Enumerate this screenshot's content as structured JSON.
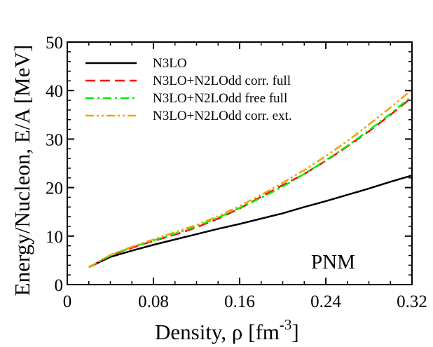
{
  "chart_data": {
    "type": "line",
    "xlabel": "Density, ρ [fm",
    "xlabel_superscript": "-3",
    "xlabel_suffix": "]",
    "ylabel": "Energy/Nucleon, E/A [MeV]",
    "xlim": [
      0,
      0.32
    ],
    "ylim": [
      0,
      50
    ],
    "x_ticks": [
      0,
      0.08,
      0.16,
      0.24,
      0.32
    ],
    "x_tick_labels": [
      "0",
      "0.08",
      "0.16",
      "0.24",
      "0.32"
    ],
    "y_ticks": [
      0,
      10,
      20,
      30,
      40,
      50
    ],
    "y_tick_labels": [
      "0",
      "10",
      "20",
      "30",
      "40",
      "50"
    ],
    "grid": false,
    "legend_position": "top-left",
    "annotation": "PNM",
    "series": [
      {
        "name": "N3LO",
        "color": "#000000",
        "dash": "solid",
        "x": [
          0.02,
          0.04,
          0.06,
          0.08,
          0.1,
          0.12,
          0.14,
          0.16,
          0.18,
          0.2,
          0.22,
          0.24,
          0.26,
          0.28,
          0.3,
          0.32
        ],
        "y": [
          3.6,
          5.7,
          7.0,
          8.2,
          9.3,
          10.4,
          11.5,
          12.5,
          13.6,
          14.7,
          16.0,
          17.2,
          18.5,
          19.8,
          21.2,
          22.5
        ]
      },
      {
        "name": "N3LO+N2LOdd corr. full",
        "color": "#ff0000",
        "dash": "dashed",
        "x": [
          0.02,
          0.04,
          0.06,
          0.08,
          0.1,
          0.12,
          0.14,
          0.16,
          0.18,
          0.2,
          0.22,
          0.24,
          0.26,
          0.28,
          0.3,
          0.32
        ],
        "y": [
          3.6,
          6.0,
          7.6,
          9.0,
          10.3,
          11.8,
          13.6,
          15.7,
          18.1,
          20.5,
          22.8,
          25.5,
          28.5,
          31.6,
          35.0,
          38.6
        ]
      },
      {
        "name": "N3LO+N2LOdd free full",
        "color": "#00ee00",
        "dash": "dashdot",
        "x": [
          0.02,
          0.04,
          0.06,
          0.08,
          0.1,
          0.12,
          0.14,
          0.16,
          0.18,
          0.2,
          0.22,
          0.24,
          0.26,
          0.28,
          0.3,
          0.32
        ],
        "y": [
          3.6,
          6.0,
          7.7,
          9.1,
          10.5,
          12.0,
          13.8,
          15.8,
          17.9,
          20.2,
          22.8,
          25.6,
          28.6,
          31.8,
          35.2,
          38.9
        ]
      },
      {
        "name": "N3LO+N2LOdd corr. ext.",
        "color": "#f5a000",
        "dash": "dashdotdot",
        "x": [
          0.02,
          0.04,
          0.06,
          0.08,
          0.1,
          0.12,
          0.14,
          0.16,
          0.18,
          0.2,
          0.22,
          0.24,
          0.26,
          0.28,
          0.3,
          0.32
        ],
        "y": [
          3.6,
          6.1,
          7.8,
          9.3,
          10.8,
          12.3,
          14.1,
          16.2,
          18.5,
          21.0,
          23.6,
          26.5,
          29.6,
          33.0,
          36.5,
          40.2
        ]
      }
    ]
  }
}
